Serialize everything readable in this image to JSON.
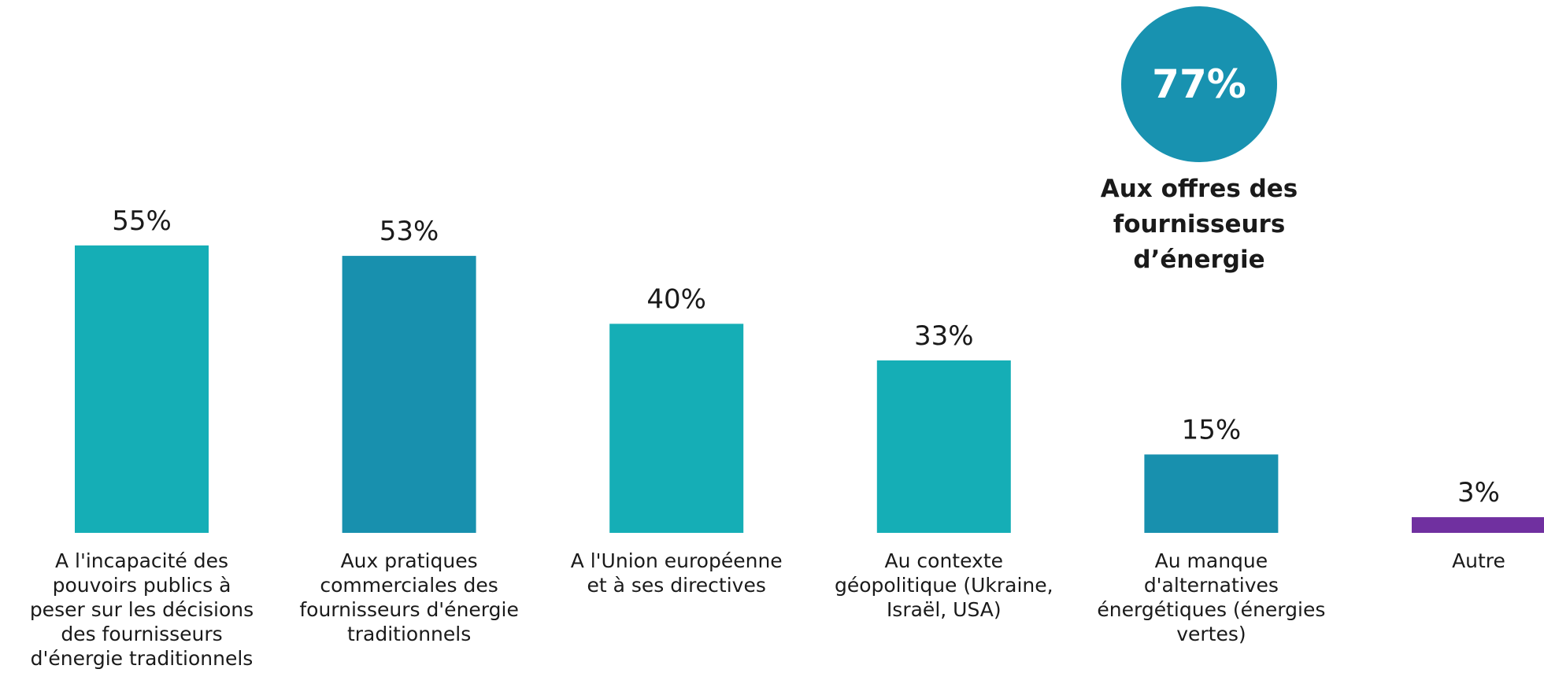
{
  "highlight": {
    "value": "77%",
    "label": "Aux offres des\nfournisseurs\nd’énergie",
    "color": "#1892B0"
  },
  "chart_data": {
    "type": "bar",
    "title": "",
    "xlabel": "",
    "ylabel": "",
    "ylim": [
      0,
      77
    ],
    "categories": [
      "A l'incapacité des pouvoirs publics à peser sur les décisions des fournisseurs d'énergie traditionnels",
      "Aux pratiques commerciales des fournisseurs d'énergie traditionnels",
      "A l'Union européenne et à ses directives",
      "Au contexte géopolitique (Ukraine, Israël, USA)",
      "Au manque d'alternatives énergétiques (énergies vertes)",
      "Autre"
    ],
    "category_lines": [
      [
        "A l'incapacité des",
        "pouvoirs publics à",
        "peser sur les décisions",
        "des fournisseurs",
        "d'énergie traditionnels"
      ],
      [
        "Aux pratiques",
        "commerciales des",
        "fournisseurs d'énergie",
        "traditionnels"
      ],
      [
        "A l'Union européenne",
        "et à ses directives"
      ],
      [
        "Au contexte",
        "géopolitique (Ukraine,",
        "Israël, USA)"
      ],
      [
        "Au manque",
        "d'alternatives",
        "énergétiques (énergies",
        "vertes)"
      ],
      [
        "Autre"
      ]
    ],
    "values": [
      55,
      53,
      40,
      33,
      15,
      3
    ],
    "value_labels": [
      "55%",
      "53%",
      "40%",
      "33%",
      "15%",
      "3%"
    ],
    "colors": [
      "#15AEB6",
      "#1890AE",
      "#15AEB6",
      "#15AEB6",
      "#1890AE",
      "#7030A0"
    ]
  }
}
